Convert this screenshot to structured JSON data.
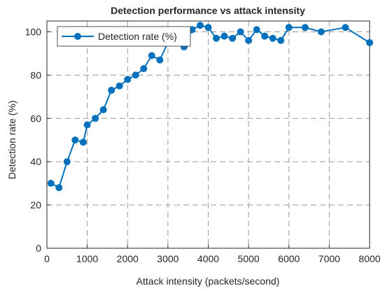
{
  "chart_data": {
    "type": "line",
    "title": "Detection performance vs attack intensity",
    "xlabel": "Attack intensity (packets/second)",
    "ylabel": "Detection rate (%)",
    "xlim": [
      0,
      8000
    ],
    "ylim": [
      0,
      105
    ],
    "xticks": [
      "0",
      "1000",
      "2000",
      "3000",
      "4000",
      "5000",
      "6000",
      "7000",
      "8000"
    ],
    "yticks": [
      "0",
      "20",
      "40",
      "60",
      "80",
      "100"
    ],
    "grid": true,
    "legend_position": "top-left",
    "series": [
      {
        "name": "Detection rate (%)",
        "color": "#0072BD",
        "x": [
          100,
          300,
          500,
          700,
          900,
          1000,
          1200,
          1400,
          1600,
          1800,
          2000,
          2200,
          2400,
          2600,
          2800,
          3000,
          3200,
          3400,
          3600,
          3800,
          4000,
          4200,
          4400,
          4600,
          4800,
          5000,
          5200,
          5400,
          5600,
          5800,
          6000,
          6400,
          6800,
          7400,
          8000
        ],
        "y": [
          30,
          28,
          40,
          50,
          49,
          57,
          60,
          64,
          73,
          75,
          78,
          80,
          83,
          89,
          87,
          95,
          97,
          93,
          101,
          103,
          102,
          97,
          98,
          97,
          100,
          96,
          101,
          98,
          97,
          96,
          102,
          102,
          100,
          102,
          95
        ]
      }
    ]
  }
}
